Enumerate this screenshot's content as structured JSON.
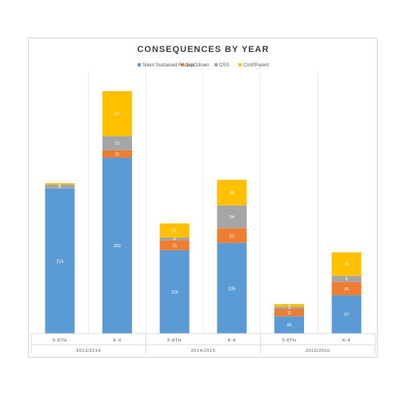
{
  "chart_data": {
    "type": "bar",
    "stacked": true,
    "title": "CONSEQUENCES BY YEAR",
    "legend_position": "top",
    "grid": "vertical category separators",
    "groups": [
      "2013/2014",
      "2014/2015",
      "2015/2016"
    ],
    "categories": [
      "5-8TH",
      "K-4",
      "5-8TH",
      "K-4",
      "5-8TH",
      "K-4"
    ],
    "category_group": [
      0,
      0,
      1,
      1,
      2,
      2
    ],
    "ylim": [
      0,
      430
    ],
    "series": [
      {
        "name": "Silent Sustained Recess",
        "color": "#5b9bd5",
        "values": [
          216,
          262,
          124,
          135,
          26,
          57
        ]
      },
      {
        "name": "2up/2down",
        "color": "#ed7d31",
        "values": [
          0,
          11,
          15,
          22,
          11,
          20
        ]
      },
      {
        "name": "OSS",
        "color": "#a5a5a5",
        "values": [
          6,
          21,
          4,
          34,
          3,
          9
        ]
      },
      {
        "name": "Conf/Parent",
        "color": "#ffc000",
        "values": [
          2,
          67,
          21,
          38,
          4,
          35
        ]
      }
    ],
    "data_labels": [
      [
        "216",
        "262",
        "124",
        "135",
        "26",
        "57"
      ],
      [
        "",
        "11",
        "15",
        "22",
        "11",
        "20"
      ],
      [
        "6",
        "21",
        "4",
        "34",
        "3",
        "9"
      ],
      [
        "2",
        "67",
        "21",
        "38",
        "4",
        "35"
      ]
    ]
  }
}
